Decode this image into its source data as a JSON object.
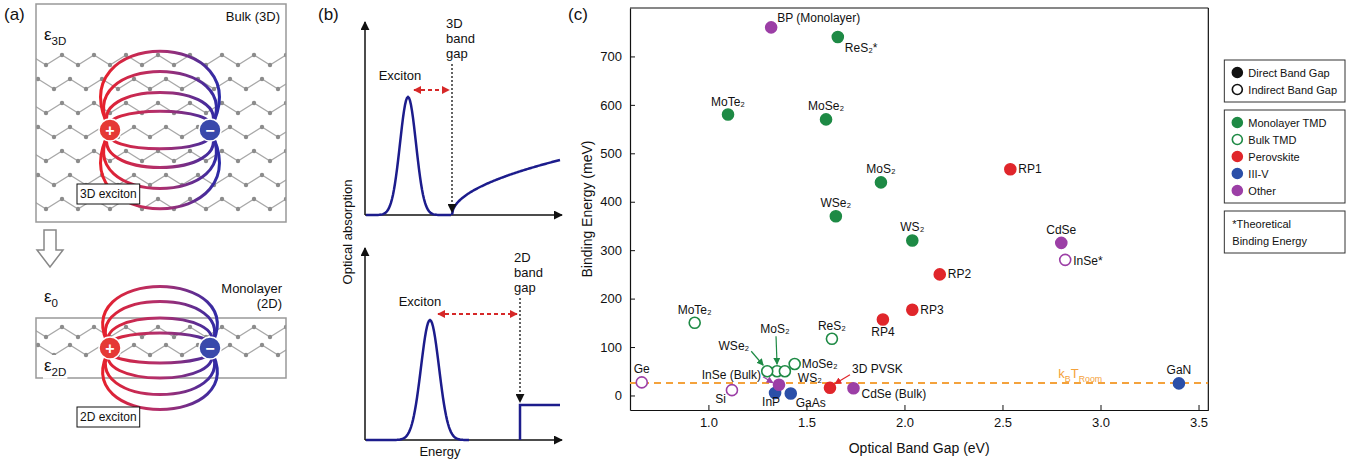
{
  "panels": {
    "a": {
      "letter": "(a)",
      "bulk": {
        "title": "Bulk (3D)",
        "epsilon": [
          "ε",
          "3D"
        ],
        "plus": "+",
        "minus": "−",
        "exciton": "3D exciton"
      },
      "monolayer": {
        "title": [
          "Monolayer",
          "(2D)"
        ],
        "epsilon_outside": [
          "ε",
          "0"
        ],
        "epsilon_inside": [
          "ε",
          "2D"
        ],
        "plus": "+",
        "minus": "−",
        "exciton": "2D exciton"
      }
    },
    "b": {
      "letter": "(b)",
      "y_label": "Optical absorption",
      "x_label": "Energy",
      "top": {
        "peak_label": "Exciton",
        "gap_label": [
          "3D",
          "band",
          "gap"
        ]
      },
      "bottom": {
        "peak_label": "Exciton",
        "gap_label": [
          "2D",
          "band",
          "gap"
        ]
      }
    }
  },
  "chart_data": {
    "type": "scatter",
    "letter": "(c)",
    "x_label": "Optical Band Gap (eV)",
    "y_label": "Binding Energy (meV)",
    "xlim": [
      0.6,
      3.55
    ],
    "xticks": [
      {
        "value": 1,
        "label": "1.0"
      },
      1.5,
      {
        "value": 2,
        "label": "2.0"
      },
      2.5,
      {
        "value": 3,
        "label": "3.0"
      },
      3.5
    ],
    "ylim": [
      -30,
      800
    ],
    "yticks": [
      0,
      100,
      200,
      300,
      400,
      500,
      600,
      700
    ],
    "grid": false,
    "legend": "right",
    "series": [
      {
        "color": "#1e8a45",
        "marker": "filled",
        "labels": [
          "MoTe₂",
          "MoSe₂",
          "MoS₂",
          "WSe₂",
          "WS₂",
          "ReS₂*"
        ],
        "x": [
          1.1,
          1.6,
          1.88,
          1.65,
          2.04,
          1.66
        ],
        "values": [
          580,
          570,
          440,
          370,
          320,
          740
        ]
      },
      {
        "color": "#1e8a45",
        "marker": "open",
        "labels": [
          "MoTe₂",
          "ReS₂",
          "MoSe₂",
          "MoS₂",
          "WSe₂",
          "WS₂"
        ],
        "x": [
          0.93,
          1.63,
          1.44,
          1.35,
          1.3,
          1.39
        ],
        "values": [
          150,
          117,
          65,
          50,
          50,
          50
        ]
      },
      {
        "color": "#e0262b",
        "marker": "filled",
        "labels": [
          "RP1",
          "RP2",
          "RP3",
          "RP4",
          "3D PVSK"
        ],
        "x": [
          2.54,
          2.18,
          2.04,
          1.89,
          1.62
        ],
        "values": [
          467,
          250,
          177,
          157,
          16
        ]
      },
      {
        "color": "#2b4fa8",
        "marker": "filled",
        "labels": [
          "InP",
          "GaAs",
          "GaN"
        ],
        "x": [
          1.34,
          1.42,
          3.4
        ],
        "values": [
          5,
          4,
          25
        ]
      },
      {
        "color": "#9c3fa6",
        "marker": "filled",
        "labels": [
          "BP (Monolayer)",
          "CdSe",
          "InSe (Bulk)",
          "CdSe (Bulk)"
        ],
        "x": [
          1.32,
          2.8,
          1.36,
          1.74
        ],
        "values": [
          760,
          315,
          22,
          15
        ]
      },
      {
        "color": "#9c3fa6",
        "marker": "open",
        "labels": [
          "InSe*",
          "Ge",
          "Si"
        ],
        "x": [
          2.82,
          0.66,
          1.12
        ],
        "values": [
          280,
          27,
          11
        ]
      }
    ],
    "reference_lines": [
      {
        "value": 25.7,
        "label_parts": [
          "k",
          "B",
          "T",
          "Room"
        ],
        "color": "#f4a23c",
        "line_style": "dashed"
      }
    ],
    "legend_entries": [
      [
        {
          "label": "Direct Band Gap",
          "marker": "filled",
          "color": "#111111"
        },
        {
          "label": "Indirect Band Gap",
          "marker": "open",
          "color": "#111111"
        }
      ],
      [
        {
          "label": "Monolayer TMD",
          "marker": "filled",
          "color": "#1e8a45"
        },
        {
          "label": "Bulk TMD",
          "marker": "open",
          "color": "#1e8a45"
        },
        {
          "label": "Perovskite",
          "marker": "filled",
          "color": "#e0262b"
        },
        {
          "label": "III-V",
          "marker": "filled",
          "color": "#2b4fa8"
        },
        {
          "label": "Other",
          "marker": "filled",
          "color": "#9c3fa6"
        }
      ],
      [
        {
          "label": "*Theoretical"
        },
        {
          "label": "Binding Energy"
        }
      ]
    ]
  }
}
